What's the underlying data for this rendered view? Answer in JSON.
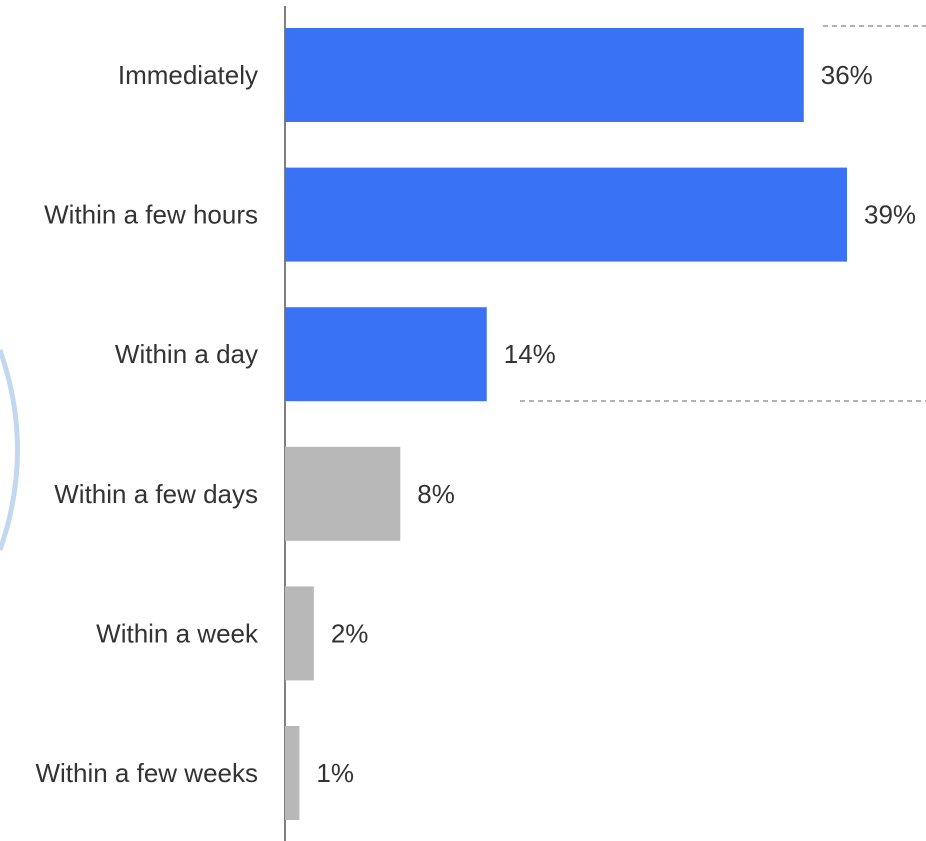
{
  "chart_data": {
    "type": "bar",
    "orientation": "horizontal",
    "title": "",
    "xlabel": "",
    "ylabel": "",
    "xlim": [
      0,
      39
    ],
    "grid": false,
    "legend": "none",
    "categories": [
      "Immediately",
      "Within a few hours",
      "Within a day",
      "Within a few days",
      "Within a week",
      "Within a few weeks"
    ],
    "values": [
      36,
      39,
      14,
      8,
      2,
      1
    ],
    "value_labels": [
      "36%",
      "39%",
      "14%",
      "8%",
      "2%",
      "1%"
    ],
    "bar_colors": [
      "#3a72f5",
      "#3a72f5",
      "#3a72f5",
      "#b8b8b8",
      "#b8b8b8",
      "#b8b8b8"
    ],
    "highlight_group": "top three categories bracketed by dashed lines"
  },
  "colors": {
    "highlight": "#3a72f5",
    "muted": "#b8b8b8",
    "axis": "#555555",
    "text": "#333333",
    "dashed": "#999999"
  }
}
